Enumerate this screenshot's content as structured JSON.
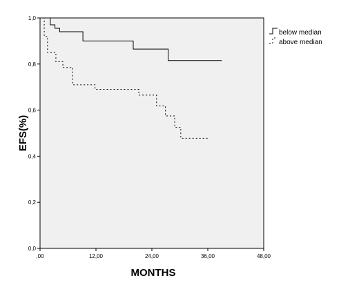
{
  "chart_data": {
    "type": "line",
    "xlabel": "MONTHS",
    "ylabel": "EFS(%)",
    "xlim": [
      0,
      48
    ],
    "ylim": [
      0,
      1
    ],
    "x_ticks": [
      0,
      12,
      24,
      36,
      48
    ],
    "x_tick_labels": [
      ",00",
      "12,00",
      "24,00",
      "36,00",
      "48,00"
    ],
    "y_ticks": [
      0,
      0.2,
      0.4,
      0.6,
      0.8,
      1.0
    ],
    "y_tick_labels": [
      "0,0",
      "0,2",
      "0,4",
      "0,6",
      "0,8",
      "1,0"
    ],
    "grid": false,
    "legend_position": "top-right",
    "plot_background": "#f0f0f0",
    "series": [
      {
        "name": "below median",
        "style": "solid",
        "color": "#000000",
        "points": [
          [
            0,
            1.0
          ],
          [
            2.2,
            1.0
          ],
          [
            2.2,
            0.97
          ],
          [
            3.2,
            0.97
          ],
          [
            3.2,
            0.955
          ],
          [
            4.2,
            0.955
          ],
          [
            4.2,
            0.94
          ],
          [
            9.2,
            0.94
          ],
          [
            9.2,
            0.9
          ],
          [
            20.0,
            0.9
          ],
          [
            20.0,
            0.865
          ],
          [
            27.5,
            0.865
          ],
          [
            27.5,
            0.815
          ],
          [
            39.0,
            0.815
          ]
        ]
      },
      {
        "name": "above median",
        "style": "dotted",
        "color": "#000000",
        "points": [
          [
            0,
            1.0
          ],
          [
            0.9,
            1.0
          ],
          [
            0.9,
            0.92
          ],
          [
            1.6,
            0.92
          ],
          [
            1.6,
            0.85
          ],
          [
            3.4,
            0.85
          ],
          [
            3.4,
            0.81
          ],
          [
            4.9,
            0.81
          ],
          [
            4.9,
            0.785
          ],
          [
            7.0,
            0.785
          ],
          [
            7.0,
            0.71
          ],
          [
            11.8,
            0.71
          ],
          [
            11.8,
            0.69
          ],
          [
            21.2,
            0.69
          ],
          [
            21.2,
            0.665
          ],
          [
            25.0,
            0.665
          ],
          [
            25.0,
            0.618
          ],
          [
            26.9,
            0.618
          ],
          [
            26.9,
            0.575
          ],
          [
            28.9,
            0.575
          ],
          [
            28.9,
            0.525
          ],
          [
            30.2,
            0.525
          ],
          [
            30.2,
            0.478
          ],
          [
            36.0,
            0.478
          ]
        ]
      }
    ]
  }
}
